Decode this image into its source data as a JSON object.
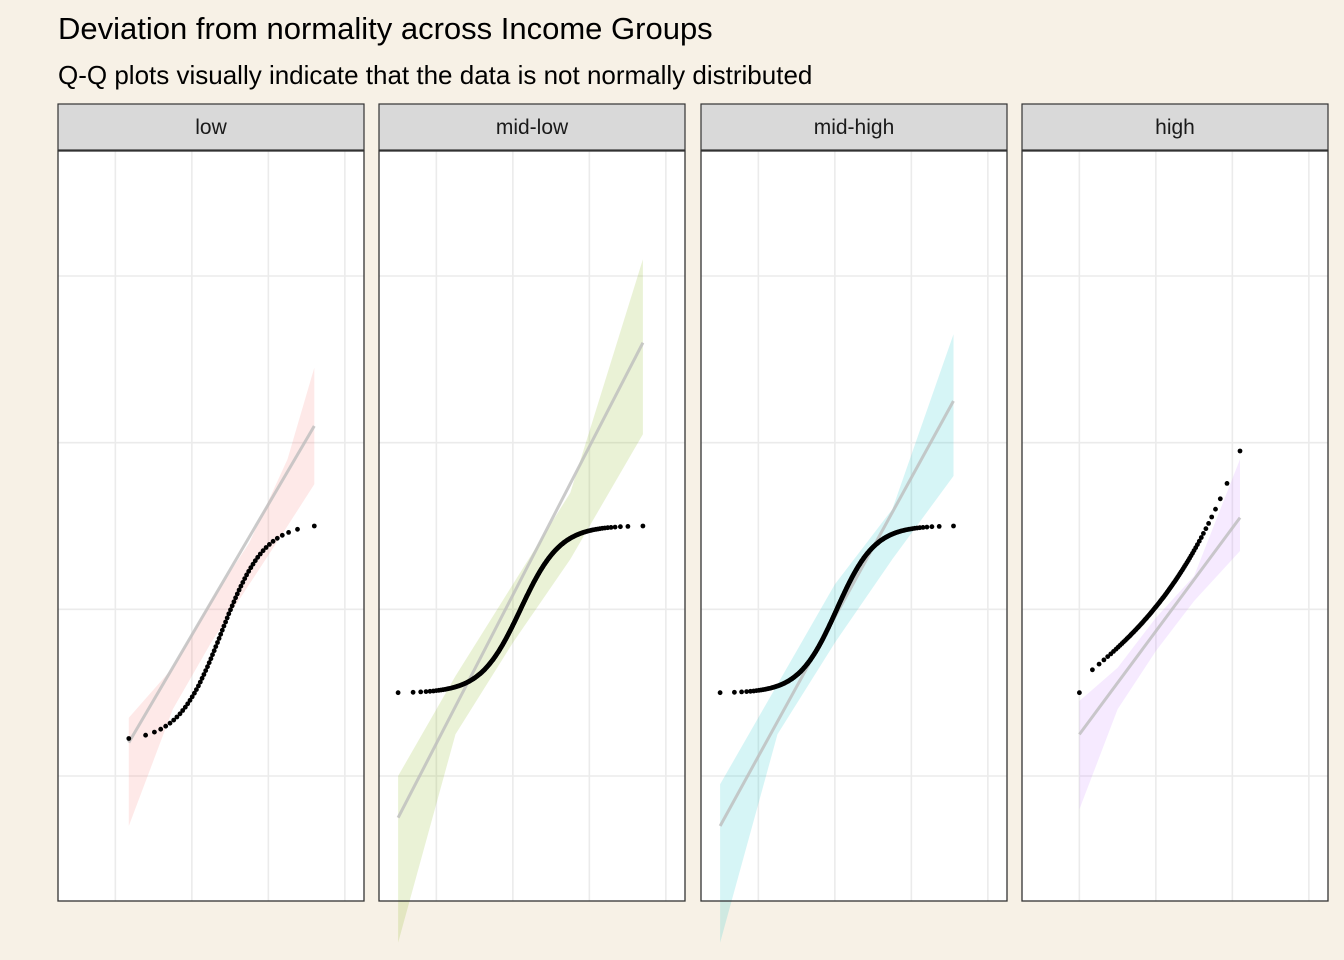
{
  "title": "Deviation from normality across Income Groups",
  "subtitle": "Q-Q plots visually indicate that the data is not normally distributed",
  "chart_data": {
    "type": "scatter",
    "title": "Deviation from normality across Income Groups",
    "subtitle": "Q-Q plots visually indicate that the data is not normally distributed",
    "xlabel": "",
    "ylabel": "",
    "x_range": [
      -3.5,
      4.5
    ],
    "y_range": [
      -3.5,
      5.5
    ],
    "grid": true,
    "legend": "none",
    "facets": [
      {
        "label": "low",
        "color": "#f8766d",
        "n": 60,
        "line": {
          "x": [
            -1.65,
            3.2
          ],
          "y": [
            -1.6,
            2.2
          ]
        },
        "band": {
          "x": [
            -1.65,
            -0.5,
            0.5,
            1.5,
            2.5,
            3.2
          ],
          "upper": [
            -1.3,
            -0.7,
            0.1,
            0.8,
            1.8,
            2.9
          ],
          "lower": [
            -2.6,
            -1.2,
            -0.4,
            0.3,
            1.0,
            1.5
          ]
        },
        "qq": {
          "x": [
            -1.65,
            3.2
          ],
          "y": [
            -1.55,
            1.0
          ]
        }
      },
      {
        "label": "mid-low",
        "color": "#7cae00",
        "n": 300,
        "line": {
          "x": [
            -3.0,
            3.4
          ],
          "y": [
            -2.5,
            3.2
          ]
        },
        "band": {
          "x": [
            -3.0,
            -1.5,
            0,
            1.5,
            3.4
          ],
          "upper": [
            -2.0,
            -0.8,
            0.3,
            1.4,
            4.2
          ],
          "lower": [
            -4.0,
            -1.5,
            -0.4,
            0.6,
            2.1
          ]
        },
        "qq": {
          "x": [
            -3.0,
            3.4
          ],
          "y": [
            -1.0,
            1.0
          ]
        }
      },
      {
        "label": "mid-high",
        "color": "#00bfc4",
        "n": 300,
        "line": {
          "x": [
            -3.0,
            3.1
          ],
          "y": [
            -2.6,
            2.5
          ]
        },
        "band": {
          "x": [
            -3.0,
            -1.5,
            0,
            1.5,
            3.1
          ],
          "upper": [
            -2.1,
            -0.9,
            0.3,
            1.2,
            3.3
          ],
          "lower": [
            -4.0,
            -1.5,
            -0.4,
            0.6,
            1.6
          ]
        },
        "qq": {
          "x": [
            -3.0,
            3.1
          ],
          "y": [
            -1.0,
            1.0
          ]
        }
      },
      {
        "label": "high",
        "color": "#c77cff",
        "n": 90,
        "line": {
          "x": [
            -2.0,
            2.2
          ],
          "y": [
            -1.5,
            1.1
          ]
        },
        "band": {
          "x": [
            -2.0,
            -1.0,
            0,
            1.0,
            2.2
          ],
          "upper": [
            -1.1,
            -0.7,
            -0.1,
            0.4,
            1.8
          ],
          "lower": [
            -2.4,
            -1.2,
            -0.5,
            0.1,
            0.7
          ]
        },
        "qq": {
          "x": [
            -2.0,
            2.2
          ],
          "y": [
            -1.0,
            1.9
          ]
        }
      }
    ]
  }
}
